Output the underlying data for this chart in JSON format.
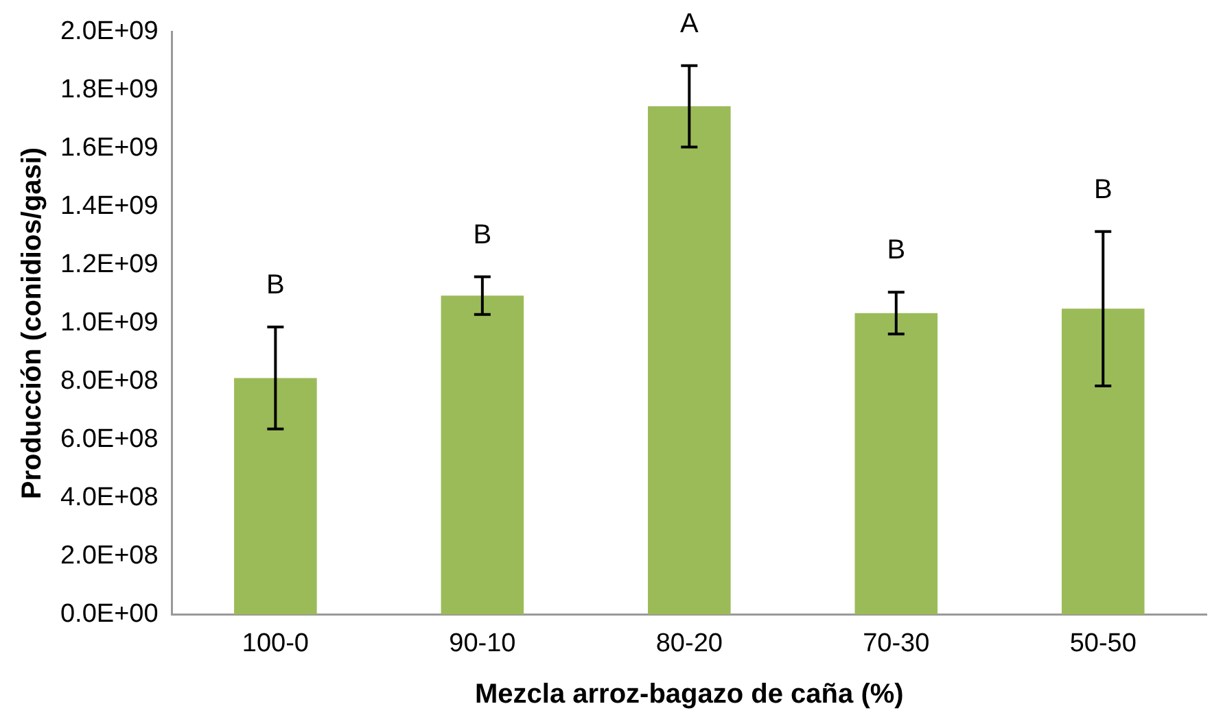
{
  "chart_data": {
    "type": "bar",
    "xlabel": "Mezcla arroz-bagazo de caña (%)",
    "ylabel": "Producción (conidios/gasi)",
    "categories": [
      "100-0",
      "90-10",
      "80-20",
      "70-30",
      "50-50"
    ],
    "values": [
      812000000,
      1095000000,
      1745000000,
      1035000000,
      1050000000
    ],
    "errors": [
      175000000,
      65000000,
      140000000,
      72000000,
      265000000
    ],
    "color": "#9bbb59",
    "ylim": [
      0,
      2000000000
    ],
    "yticks": [
      {
        "value": 0,
        "label": "0.0E+00"
      },
      {
        "value": 200000000,
        "label": "2.0E+08"
      },
      {
        "value": 400000000,
        "label": "4.0E+08"
      },
      {
        "value": 600000000,
        "label": "6.0E+08"
      },
      {
        "value": 800000000,
        "label": "8.0E+08"
      },
      {
        "value": 1000000000,
        "label": "1.0E+09"
      },
      {
        "value": 1200000000,
        "label": "1.2E+09"
      },
      {
        "value": 1400000000,
        "label": "1.4E+09"
      },
      {
        "value": 1600000000,
        "label": "1.6E+09"
      },
      {
        "value": 1800000000,
        "label": "1.8E+09"
      },
      {
        "value": 2000000000,
        "label": "2.0E+09"
      }
    ],
    "annotations": [
      "B",
      "B",
      "A",
      "B",
      "B"
    ],
    "grid": false,
    "legend": false
  }
}
